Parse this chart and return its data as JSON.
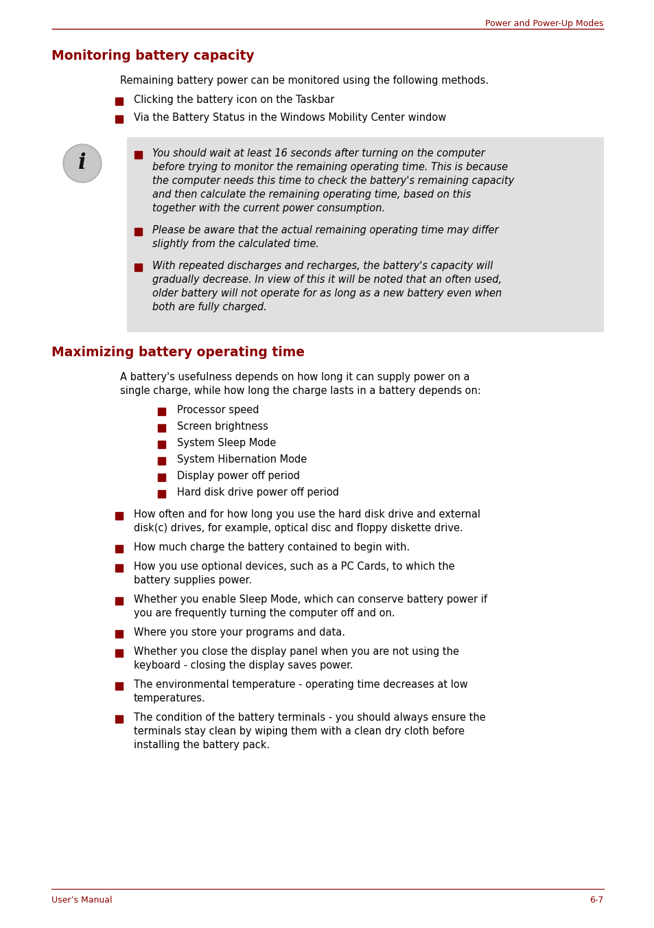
{
  "bg_color": "#ffffff",
  "dark_red": "#8B0000",
  "light_gray": "#e0e0e0",
  "text_color": "#000000",
  "header_text": "Power and Power-Up Modes",
  "footer_left": "User’s Manual",
  "footer_right": "6-7",
  "section1_title": "Monitoring battery capacity",
  "section1_intro": "Remaining battery power can be monitored using the following methods.",
  "section1_bullets": [
    "Clicking the battery icon on the Taskbar",
    "Via the Battery Status in the Windows Mobility Center window"
  ],
  "info_bullets": [
    "You should wait at least 16 seconds after turning on the computer before trying to monitor the remaining operating time. This is because the computer needs this time to check the battery's remaining capacity and then calculate the remaining operating time, based on this together with the current power consumption.",
    "Please be aware that the actual remaining operating time may differ slightly from the calculated time.",
    "With repeated discharges and recharges, the battery's capacity will gradually decrease. In view of this it will be noted that an often used, older battery will not operate for as long as a new battery even when both are fully charged."
  ],
  "section2_title": "Maximizing battery operating time",
  "section2_intro_lines": [
    "A battery's usefulness depends on how long it can supply power on a",
    "single charge, while how long the charge lasts in a battery depends on:"
  ],
  "section2_sub_bullets": [
    "Processor speed",
    "Screen brightness",
    "System Sleep Mode",
    "System Hibernation Mode",
    "Display power off period",
    "Hard disk drive power off period"
  ],
  "section2_bullets": [
    [
      "How often and for how long you use the hard disk drive and external",
      "disk(c) drives, for example, optical disc and floppy diskette drive."
    ],
    [
      "How much charge the battery contained to begin with."
    ],
    [
      "How you use optional devices, such as a PC Cards, to which the",
      "battery supplies power."
    ],
    [
      "Whether you enable Sleep Mode, which can conserve battery power if",
      "you are frequently turning the computer off and on."
    ],
    [
      "Where you store your programs and data."
    ],
    [
      "Whether you close the display panel when you are not using the",
      "keyboard - closing the display saves power."
    ],
    [
      "The environmental temperature - operating time decreases at low",
      "temperatures."
    ],
    [
      "The condition of the battery terminals - you should always ensure the",
      "terminals stay clean by wiping them with a clean dry cloth before",
      "installing the battery pack."
    ]
  ],
  "info_bullet_lines": [
    [
      "You should wait at least 16 seconds after turning on the computer",
      "before trying to monitor the remaining operating time. This is because",
      "the computer needs this time to check the battery's remaining capacity",
      "and then calculate the remaining operating time, based on this",
      "together with the current power consumption."
    ],
    [
      "Please be aware that the actual remaining operating time may differ",
      "slightly from the calculated time."
    ],
    [
      "With repeated discharges and recharges, the battery's capacity will",
      "gradually decrease. In view of this it will be noted that an often used,",
      "older battery will not operate for as long as a new battery even when",
      "both are fully charged."
    ]
  ]
}
